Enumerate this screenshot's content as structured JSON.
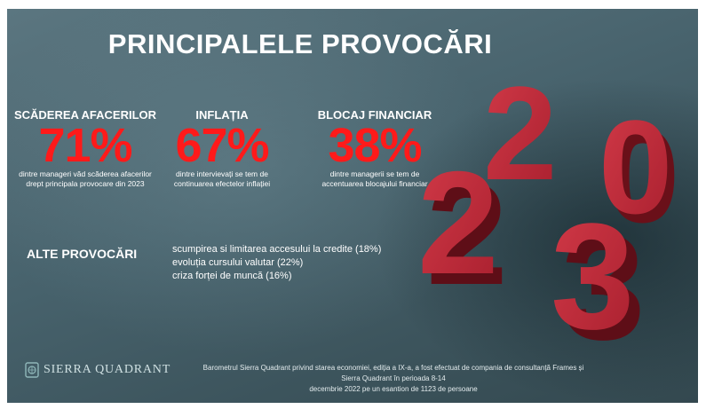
{
  "title": "PRINCIPALELE PROVOCĂRI",
  "stats": [
    {
      "label": "SCĂDEREA AFACERILOR",
      "value": "71%",
      "description_line1": "dintre manageri văd scăderea afacerilor",
      "description_line2": "drept principala provocare din 2023"
    },
    {
      "label": "INFLAȚIA",
      "value": "67%",
      "description_line1": "dintre intervievați se tem de",
      "description_line2": "continuarea efectelor inflației"
    },
    {
      "label": "BLOCAJ FINANCIAR",
      "value": "38%",
      "description_line1": "dintre managerii se tem de",
      "description_line2": "accentuarea blocajului financiar"
    }
  ],
  "other": {
    "heading": "ALTE PROVOCĂRI",
    "items": [
      "scumpirea si limitarea accesului la credite (18%)",
      "evoluția cursului valutar (22%)",
      "criza forței de muncă (16%)"
    ]
  },
  "brand": {
    "name": "SIERRA QUADRANT",
    "logo_icon": "sierra-quadrant-emblem-icon"
  },
  "footer": {
    "line1": "Barometrul Sierra Quadrant privind starea economiei, ediția a IX-a, a fost efectuat de compania de consultanță Frames și Sierra Quadrant în perioada 8-14",
    "line2": "decembrie 2022 pe un esantion de 1123 de persoane"
  },
  "artwork": {
    "digits": [
      "2",
      "0",
      "2",
      "3"
    ]
  },
  "colors": {
    "accent_red": "#ff1a1a",
    "digit_red": "#c62a3a",
    "background": "#47626c"
  }
}
